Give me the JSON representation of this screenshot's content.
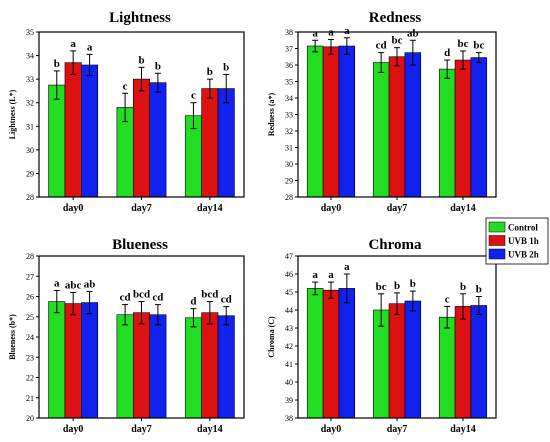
{
  "colors": {
    "control": "#22dd22",
    "uvb1": "#dd1111",
    "uvb2": "#1122ee"
  },
  "legend": {
    "entries": [
      {
        "label": "Control",
        "color": "#22dd22"
      },
      {
        "label": "UVB 1h",
        "color": "#dd1111"
      },
      {
        "label": "UVB 2h",
        "color": "#1122ee"
      }
    ]
  },
  "chart_data": [
    {
      "type": "bar",
      "title": "Lightness",
      "ylabel": "Lightness (L*)",
      "ylim": [
        28,
        35
      ],
      "yticks": [
        28,
        29,
        30,
        31,
        32,
        33,
        34,
        35
      ],
      "categories": [
        "day0",
        "day7",
        "day14"
      ],
      "series": [
        {
          "name": "Control",
          "values": [
            32.75,
            31.8,
            31.45
          ],
          "errors": [
            0.6,
            0.6,
            0.55
          ],
          "letters": [
            "b",
            "c",
            "c"
          ]
        },
        {
          "name": "UVB 1h",
          "values": [
            33.7,
            33.0,
            32.6
          ],
          "errors": [
            0.5,
            0.5,
            0.4
          ],
          "letters": [
            "a",
            "b",
            "b"
          ]
        },
        {
          "name": "UVB 2h",
          "values": [
            33.6,
            32.85,
            32.6
          ],
          "errors": [
            0.45,
            0.4,
            0.6
          ],
          "letters": [
            "a",
            "b",
            "b"
          ]
        }
      ]
    },
    {
      "type": "bar",
      "title": "Redness",
      "ylabel": "Redness (a*)",
      "ylim": [
        28,
        38
      ],
      "yticks": [
        28,
        29,
        30,
        31,
        32,
        33,
        34,
        35,
        36,
        37,
        38
      ],
      "categories": [
        "day0",
        "day7",
        "day14"
      ],
      "series": [
        {
          "name": "Control",
          "values": [
            37.15,
            36.15,
            35.75
          ],
          "errors": [
            0.35,
            0.6,
            0.55
          ],
          "letters": [
            "a",
            "cd",
            "d"
          ]
        },
        {
          "name": "UVB 1h",
          "values": [
            37.1,
            36.5,
            36.3
          ],
          "errors": [
            0.45,
            0.55,
            0.55
          ],
          "letters": [
            "a",
            "bc",
            "bc"
          ]
        },
        {
          "name": "UVB 2h",
          "values": [
            37.15,
            36.75,
            36.45
          ],
          "errors": [
            0.5,
            0.75,
            0.3
          ],
          "letters": [
            "a",
            "ab",
            "bc"
          ]
        }
      ]
    },
    {
      "type": "bar",
      "title": "Blueness",
      "ylabel": "Blueness (b*)",
      "ylim": [
        20,
        28
      ],
      "yticks": [
        20,
        21,
        22,
        23,
        24,
        25,
        26,
        27,
        28
      ],
      "categories": [
        "day0",
        "day7",
        "day14"
      ],
      "series": [
        {
          "name": "Control",
          "values": [
            25.75,
            25.1,
            24.95
          ],
          "errors": [
            0.55,
            0.5,
            0.45
          ],
          "letters": [
            "a",
            "cd",
            "d"
          ]
        },
        {
          "name": "UVB 1h",
          "values": [
            25.65,
            25.2,
            25.2
          ],
          "errors": [
            0.55,
            0.55,
            0.55
          ],
          "letters": [
            "abc",
            "bcd",
            "bcd"
          ]
        },
        {
          "name": "UVB 2h",
          "values": [
            25.7,
            25.1,
            25.05
          ],
          "errors": [
            0.55,
            0.5,
            0.45
          ],
          "letters": [
            "ab",
            "cd",
            "cd"
          ]
        }
      ]
    },
    {
      "type": "bar",
      "title": "Chroma",
      "ylabel": "Chroma (C)",
      "ylim": [
        38,
        47
      ],
      "yticks": [
        38,
        39,
        40,
        41,
        42,
        43,
        44,
        45,
        46,
        47
      ],
      "categories": [
        "day0",
        "day7",
        "day14"
      ],
      "series": [
        {
          "name": "Control",
          "values": [
            45.2,
            44.0,
            43.6
          ],
          "errors": [
            0.35,
            0.9,
            0.6
          ],
          "letters": [
            "a",
            "bc",
            "c"
          ]
        },
        {
          "name": "UVB 1h",
          "values": [
            45.1,
            44.35,
            44.2
          ],
          "errors": [
            0.45,
            0.6,
            0.7
          ],
          "letters": [
            "a",
            "b",
            "b"
          ]
        },
        {
          "name": "UVB 2h",
          "values": [
            45.2,
            44.5,
            44.25
          ],
          "errors": [
            0.8,
            0.55,
            0.5
          ],
          "letters": [
            "a",
            "b",
            "b"
          ]
        }
      ]
    }
  ]
}
